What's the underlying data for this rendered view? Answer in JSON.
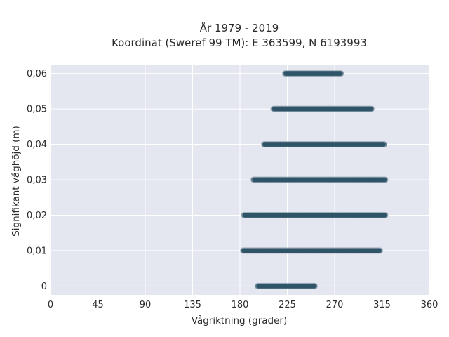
{
  "chart_data": {
    "type": "scatter",
    "title": "År 1979 - 2019",
    "subtitle": "Koordinat (Sweref 99 TM): E 363599, N 6193993",
    "xlabel": "Vågriktning (grader)",
    "ylabel": "Signifikant våghöjd (m)",
    "xlim": [
      0,
      360
    ],
    "ylim": [
      -0.0025,
      0.0625
    ],
    "x_ticks": [
      0,
      45,
      90,
      135,
      180,
      225,
      270,
      315,
      360
    ],
    "x_tick_labels": [
      "0",
      "45",
      "90",
      "135",
      "180",
      "225",
      "270",
      "315",
      "360"
    ],
    "y_ticks": [
      0,
      0.01,
      0.02,
      0.03,
      0.04,
      0.05,
      0.06
    ],
    "y_tick_labels": [
      "0",
      "0,01",
      "0,02",
      "0,03",
      "0,04",
      "0,05",
      "0,06"
    ],
    "grid": true,
    "background_color": "#e5e7f0",
    "marker_color": "#2f5468",
    "series": [
      {
        "bands": [
          {
            "y": 0.0,
            "x_start": 197,
            "x_end": 251
          },
          {
            "y": 0.01,
            "x_start": 183,
            "x_end": 313
          },
          {
            "y": 0.02,
            "x_start": 184,
            "x_end": 318
          },
          {
            "y": 0.03,
            "x_start": 193,
            "x_end": 318
          },
          {
            "y": 0.04,
            "x_start": 203,
            "x_end": 317
          },
          {
            "y": 0.05,
            "x_start": 212,
            "x_end": 305
          },
          {
            "y": 0.06,
            "x_start": 223,
            "x_end": 276
          }
        ]
      }
    ]
  }
}
